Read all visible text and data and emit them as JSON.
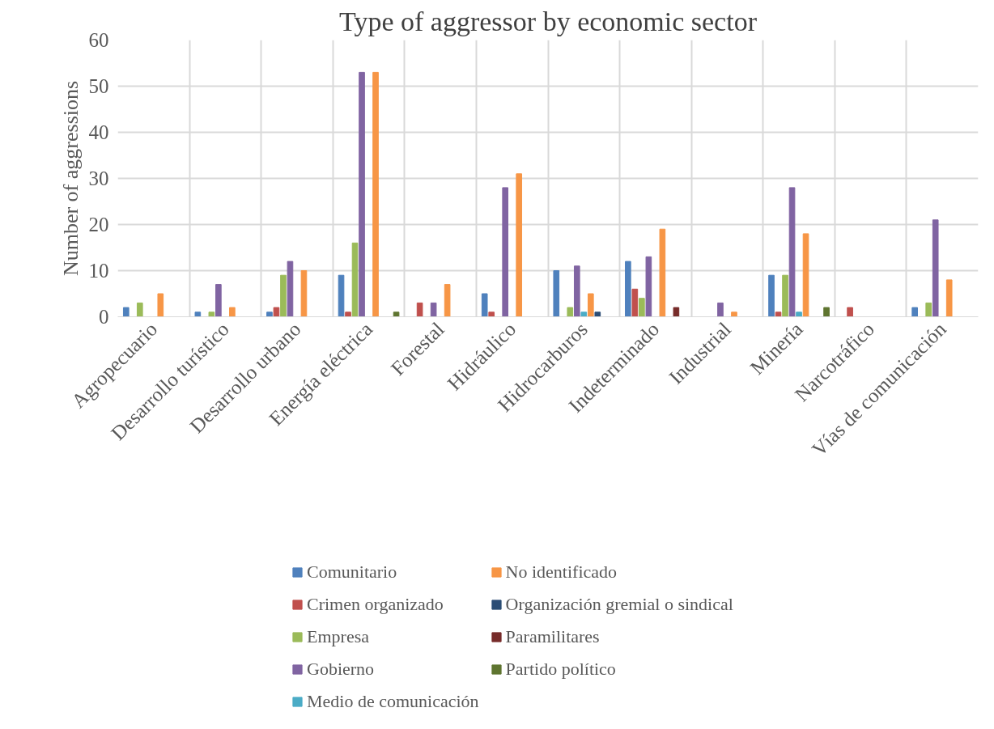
{
  "chart_data": {
    "type": "bar",
    "title": "Type of aggressor by economic sector",
    "ylabel": "Number of aggressions",
    "categories": [
      "Agropecuario",
      "Desarrollo turístico",
      "Desarrollo urbano",
      "Energía eléctrica",
      "Forestal",
      "Hidráulico",
      "Hidrocarburos",
      "Indeterminado",
      "Industrial",
      "Minería",
      "Narcotráfico",
      "Vías de comunicación"
    ],
    "series": [
      {
        "name": "Comunitario",
        "color": "#4f81bd",
        "values": [
          2,
          1,
          1,
          9,
          0,
          5,
          10,
          12,
          0,
          9,
          0,
          2
        ]
      },
      {
        "name": "Crimen organizado",
        "color": "#c0504d",
        "values": [
          0,
          0,
          2,
          1,
          3,
          1,
          0,
          6,
          0,
          1,
          2,
          0
        ]
      },
      {
        "name": "Empresa",
        "color": "#9bbb59",
        "values": [
          3,
          1,
          9,
          16,
          0,
          0,
          2,
          4,
          0,
          9,
          0,
          3
        ]
      },
      {
        "name": "Gobierno",
        "color": "#8064a2",
        "values": [
          0,
          7,
          12,
          53,
          3,
          28,
          11,
          13,
          3,
          28,
          0,
          21
        ]
      },
      {
        "name": "Medio de comunicación",
        "color": "#4bacc6",
        "values": [
          0,
          0,
          0,
          0,
          0,
          0,
          1,
          0,
          0,
          1,
          0,
          0
        ]
      },
      {
        "name": "No identificado",
        "color": "#f79646",
        "values": [
          5,
          2,
          10,
          53,
          7,
          31,
          5,
          19,
          1,
          18,
          0,
          8
        ]
      },
      {
        "name": "Organización gremial o sindical",
        "color": "#2c4d75",
        "values": [
          0,
          0,
          0,
          0,
          0,
          0,
          1,
          0,
          0,
          0,
          0,
          0
        ]
      },
      {
        "name": "Paramilitares",
        "color": "#772c2a",
        "values": [
          0,
          0,
          0,
          0,
          0,
          0,
          0,
          2,
          0,
          0,
          0,
          0
        ]
      },
      {
        "name": "Partido político",
        "color": "#5f7530",
        "values": [
          0,
          0,
          0,
          1,
          0,
          0,
          0,
          0,
          0,
          2,
          0,
          0
        ]
      }
    ],
    "ylim": [
      0,
      60
    ],
    "yticks": [
      0,
      10,
      20,
      30,
      40,
      50,
      60
    ],
    "grid": true,
    "legend": "bottom"
  }
}
